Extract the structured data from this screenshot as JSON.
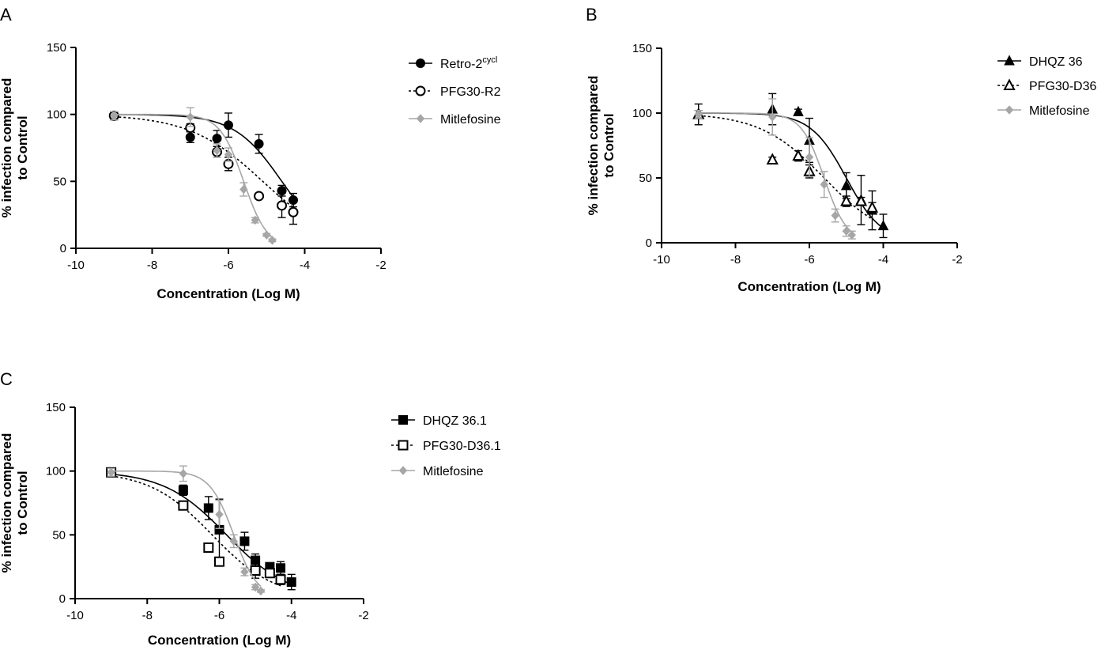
{
  "colors": {
    "black": "#000000",
    "gray": "#a6a6a6",
    "white": "#ffffff"
  },
  "chart_data": [
    {
      "panel": "A",
      "type": "scatter",
      "xlabel": "Concentration (Log M)",
      "ylabel_line1": "% infection compared",
      "ylabel_line2": "to  Control",
      "xlim": [
        -10,
        -2
      ],
      "ylim": [
        0,
        150
      ],
      "xticks": [
        -10,
        -8,
        -6,
        -4,
        -2
      ],
      "yticks": [
        0,
        50,
        100,
        150
      ],
      "series": [
        {
          "name": "Retro-2",
          "name_sup": "cycl",
          "marker": "circle",
          "fill": "filled",
          "color": "#000000",
          "line": "solid",
          "fit": {
            "top": 100,
            "bottom": 0,
            "logic50": -4.6,
            "hill": 0.7,
            "x0": -9,
            "x1": -4.3
          },
          "x": [
            -9,
            -7,
            -6.3,
            -6,
            -5.2,
            -4.6,
            -4.3
          ],
          "y": [
            99,
            83,
            82,
            92,
            78,
            43,
            36
          ],
          "err": [
            3,
            4,
            6,
            9,
            7,
            4,
            5
          ]
        },
        {
          "name": "PFG30-R2",
          "name_sup": "",
          "marker": "circle",
          "fill": "open",
          "color": "#000000",
          "line": "dotted",
          "fit": {
            "top": 100,
            "bottom": 0,
            "logic50": -5.1,
            "hill": 0.45,
            "x0": -9,
            "x1": -4.3
          },
          "x": [
            -9,
            -7,
            -6.3,
            -6,
            -5.2,
            -4.6,
            -4.3
          ],
          "y": [
            99,
            90,
            72,
            63,
            39,
            32,
            27
          ],
          "err": [
            3,
            3,
            4,
            5,
            2,
            9,
            9
          ]
        },
        {
          "name": "Mitlefosine",
          "name_sup": "",
          "marker": "diamond",
          "fill": "filled",
          "color": "#a6a6a6",
          "line": "solid",
          "fit": {
            "top": 100,
            "bottom": 0,
            "logic50": -5.6,
            "hill": 1.4,
            "x0": -9,
            "x1": -4.85
          },
          "x": [
            -9,
            -7,
            -6.3,
            -6,
            -5.6,
            -5.3,
            -5,
            -4.85
          ],
          "y": [
            99,
            98,
            73,
            70,
            44,
            21,
            10,
            6
          ],
          "err": [
            3,
            7,
            5,
            5,
            5,
            2,
            1,
            1
          ]
        }
      ]
    },
    {
      "panel": "B",
      "type": "scatter",
      "xlabel": "Concentration (Log M)",
      "ylabel_line1": "% infection compared",
      "ylabel_line2": "to  Control",
      "xlim": [
        -10,
        -2
      ],
      "ylim": [
        0,
        150
      ],
      "xticks": [
        -10,
        -8,
        -6,
        -4,
        -2
      ],
      "yticks": [
        0,
        50,
        100,
        150
      ],
      "series": [
        {
          "name": "DHQZ 36",
          "name_sup": "",
          "marker": "triangle",
          "fill": "filled",
          "color": "#000000",
          "line": "solid",
          "fit": {
            "top": 100,
            "bottom": 0,
            "logic50": -5.0,
            "hill": 0.9,
            "x0": -9,
            "x1": -4
          },
          "x": [
            -9,
            -7,
            -6.3,
            -6,
            -5,
            -4.6,
            -4.3,
            -4
          ],
          "y": [
            99,
            103,
            101,
            79,
            44,
            33,
            25,
            13
          ],
          "err": [
            8,
            12,
            2,
            17,
            10,
            19,
            15,
            9
          ]
        },
        {
          "name": "PFG30-D36",
          "name_sup": "",
          "marker": "triangle",
          "fill": "open",
          "color": "#000000",
          "line": "dotted",
          "fit": {
            "top": 100,
            "bottom": 0,
            "logic50": -5.6,
            "hill": 0.5,
            "x0": -9,
            "x1": -4.3
          },
          "x": [
            -9,
            -7,
            -6.3,
            -6,
            -5,
            -4.6,
            -4.3
          ],
          "y": [
            99,
            64,
            67,
            55,
            32,
            32,
            27
          ],
          "err": [
            3,
            2,
            4,
            5,
            4,
            3,
            4
          ]
        },
        {
          "name": "Mitlefosine",
          "name_sup": "",
          "marker": "diamond",
          "fill": "filled",
          "color": "#a6a6a6",
          "line": "solid",
          "fit": {
            "top": 100,
            "bottom": 0,
            "logic50": -5.6,
            "hill": 1.4,
            "x0": -9,
            "x1": -4.85
          },
          "x": [
            -9,
            -7,
            -6,
            -5.6,
            -5.3,
            -5,
            -4.85
          ],
          "y": [
            99,
            97,
            66,
            45,
            21,
            9,
            6
          ],
          "err": [
            3,
            14,
            15,
            10,
            5,
            4,
            3
          ]
        }
      ]
    },
    {
      "panel": "C",
      "type": "scatter",
      "xlabel": "Concentration (Log M)",
      "ylabel_line1": "% infection compared",
      "ylabel_line2": "to  Control",
      "xlim": [
        -10,
        -2
      ],
      "ylim": [
        0,
        150
      ],
      "xticks": [
        -10,
        -8,
        -6,
        -4,
        -2
      ],
      "yticks": [
        0,
        50,
        100,
        150
      ],
      "series": [
        {
          "name": "DHQZ 36.1",
          "name_sup": "",
          "marker": "square",
          "fill": "filled",
          "color": "#000000",
          "line": "solid",
          "fit": {
            "top": 100,
            "bottom": 0,
            "logic50": -5.8,
            "hill": 0.5,
            "x0": -9,
            "x1": -4
          },
          "x": [
            -9,
            -7,
            -6.3,
            -6,
            -5.3,
            -5,
            -4.6,
            -4.3,
            -4
          ],
          "y": [
            99,
            85,
            71,
            54,
            45,
            30,
            25,
            24,
            13
          ],
          "err": [
            2,
            4,
            9,
            24,
            7,
            5,
            2,
            5,
            6
          ]
        },
        {
          "name": "PFG30-D36.1",
          "name_sup": "",
          "marker": "square",
          "fill": "open",
          "color": "#000000",
          "line": "dotted",
          "fit": {
            "top": 100,
            "bottom": 0,
            "logic50": -6.2,
            "hill": 0.5,
            "x0": -9,
            "x1": -4.3
          },
          "x": [
            -9,
            -7,
            -6.3,
            -6,
            -5,
            -4.6,
            -4.3
          ],
          "y": [
            99,
            73,
            40,
            29,
            22,
            20,
            15
          ],
          "err": [
            2,
            2,
            2,
            3,
            6,
            3,
            4
          ]
        },
        {
          "name": "Mitlefosine",
          "name_sup": "",
          "marker": "diamond",
          "fill": "filled",
          "color": "#a6a6a6",
          "line": "solid",
          "fit": {
            "top": 100,
            "bottom": 0,
            "logic50": -5.6,
            "hill": 1.3,
            "x0": -9,
            "x1": -4.85
          },
          "x": [
            -9,
            -7,
            -6,
            -5.6,
            -5.3,
            -5,
            -4.85
          ],
          "y": [
            99,
            98,
            66,
            45,
            21,
            9,
            6
          ],
          "err": [
            3,
            6,
            11,
            5,
            3,
            2,
            1
          ]
        }
      ]
    }
  ]
}
